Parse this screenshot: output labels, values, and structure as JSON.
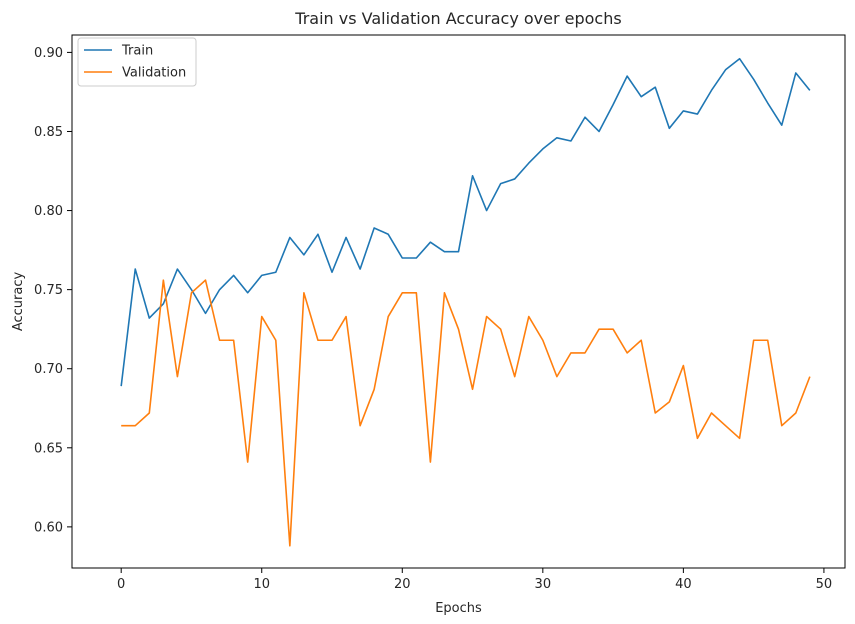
{
  "chart_data": {
    "type": "line",
    "title": "Train vs Validation Accuracy over epochs",
    "xlabel": "Epochs",
    "ylabel": "Accuracy",
    "xlim": [
      -3.5,
      51.5
    ],
    "ylim": [
      0.574,
      0.911
    ],
    "xticks": [
      0,
      10,
      20,
      30,
      40,
      50
    ],
    "yticks": [
      0.6,
      0.65,
      0.7,
      0.75,
      0.8,
      0.85,
      0.9
    ],
    "x": [
      0,
      1,
      2,
      3,
      4,
      5,
      6,
      7,
      8,
      9,
      10,
      11,
      12,
      13,
      14,
      15,
      16,
      17,
      18,
      19,
      20,
      21,
      22,
      23,
      24,
      25,
      26,
      27,
      28,
      29,
      30,
      31,
      32,
      33,
      34,
      35,
      36,
      37,
      38,
      39,
      40,
      41,
      42,
      43,
      44,
      45,
      46,
      47,
      48,
      49
    ],
    "legend_position": "top-left",
    "grid": false,
    "series": [
      {
        "name": "Train",
        "color": "#1f77b4",
        "values": [
          0.689,
          0.763,
          0.732,
          0.741,
          0.763,
          0.75,
          0.735,
          0.75,
          0.759,
          0.748,
          0.759,
          0.761,
          0.783,
          0.772,
          0.785,
          0.761,
          0.783,
          0.763,
          0.789,
          0.785,
          0.77,
          0.77,
          0.78,
          0.774,
          0.774,
          0.822,
          0.8,
          0.817,
          0.82,
          0.83,
          0.839,
          0.846,
          0.844,
          0.859,
          0.85,
          0.867,
          0.885,
          0.872,
          0.878,
          0.852,
          0.863,
          0.861,
          0.876,
          0.889,
          0.896,
          0.883,
          0.868,
          0.854,
          0.887,
          0.876
        ]
      },
      {
        "name": "Validation",
        "color": "#ff7f0e",
        "values": [
          0.664,
          0.664,
          0.672,
          0.756,
          0.695,
          0.748,
          0.756,
          0.718,
          0.718,
          0.641,
          0.733,
          0.718,
          0.588,
          0.748,
          0.718,
          0.718,
          0.733,
          0.664,
          0.687,
          0.733,
          0.748,
          0.748,
          0.641,
          0.748,
          0.725,
          0.687,
          0.733,
          0.725,
          0.695,
          0.733,
          0.718,
          0.695,
          0.71,
          0.71,
          0.725,
          0.725,
          0.71,
          0.718,
          0.672,
          0.679,
          0.702,
          0.656,
          0.672,
          0.664,
          0.656,
          0.718,
          0.718,
          0.664,
          0.672,
          0.695
        ]
      }
    ]
  }
}
